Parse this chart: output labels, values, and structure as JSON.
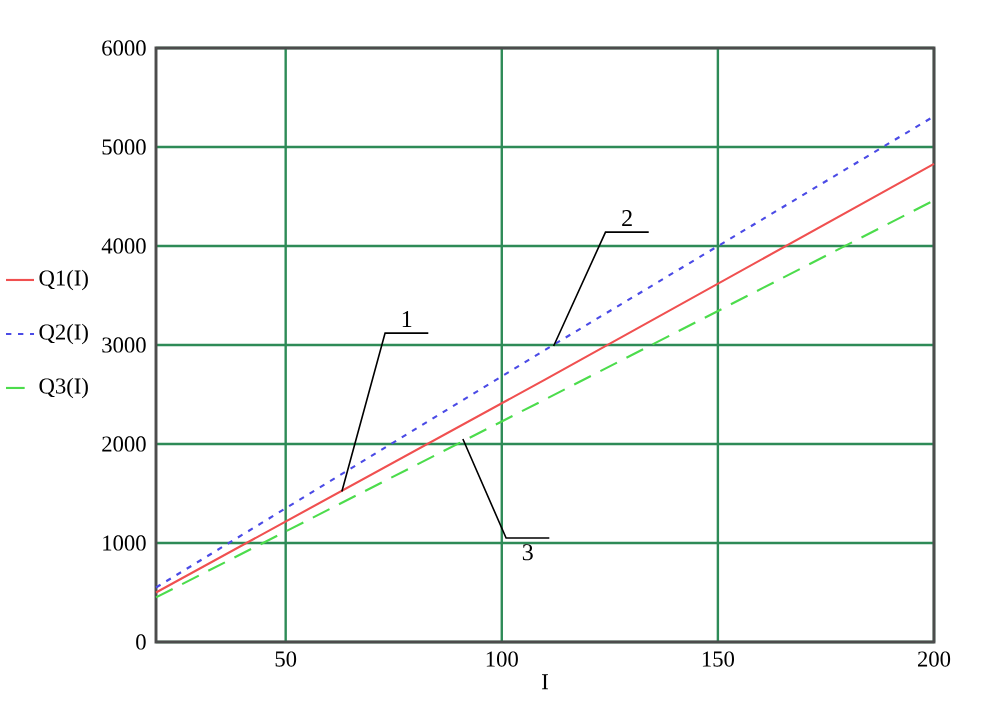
{
  "chart_data": {
    "type": "line",
    "xlabel": "I",
    "xlim": [
      20,
      200
    ],
    "xticks": [
      50,
      100,
      150,
      200
    ],
    "ylim": [
      0,
      6000
    ],
    "yticks": [
      0,
      1000,
      2000,
      3000,
      4000,
      5000,
      6000
    ],
    "grid": true,
    "legend": "left",
    "series": [
      {
        "name": "Q1(I)",
        "color": "#f05050",
        "line_style": "solid",
        "x": [
          20,
          110,
          200
        ],
        "values": [
          500,
          2650,
          4830
        ]
      },
      {
        "name": "Q2(I)",
        "color": "#4b4be6",
        "line_style": "dotted",
        "x": [
          20,
          110,
          200
        ],
        "values": [
          550,
          2950,
          5310
        ]
      },
      {
        "name": "Q3(I)",
        "color": "#4cdc4c",
        "line_style": "dashed",
        "x": [
          20,
          110,
          200
        ],
        "values": [
          450,
          2450,
          4460
        ]
      }
    ],
    "annotations": [
      {
        "text": "1",
        "x": 63,
        "y": 1520
      },
      {
        "text": "2",
        "x": 112,
        "y": 2990
      },
      {
        "text": "3",
        "x": 91,
        "y": 2050
      }
    ]
  }
}
